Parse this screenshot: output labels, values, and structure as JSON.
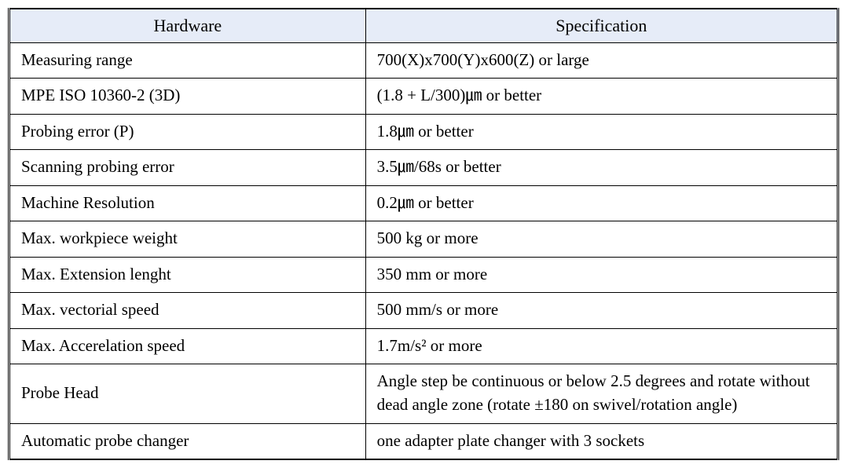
{
  "table": {
    "header_bg": "#e6ecf8",
    "border_color": "#000000",
    "font_family": "Times New Roman",
    "header_fontsize": 22,
    "cell_fontsize": 21,
    "columns": [
      {
        "label": "Hardware",
        "align": "center",
        "width_pct": 43
      },
      {
        "label": "Specification",
        "align": "center",
        "width_pct": 57
      }
    ],
    "rows": [
      {
        "hardware": "Measuring range",
        "spec": "700(X)x700(Y)x600(Z) or large"
      },
      {
        "hardware": "MPE ISO 10360-2 (3D)",
        "spec": "(1.8 + L/300)㎛ or better"
      },
      {
        "hardware": "Probing error (P)",
        "spec": "1.8㎛ or better"
      },
      {
        "hardware": "Scanning probing error",
        "spec": "3.5㎛/68s or better"
      },
      {
        "hardware": "Machine Resolution",
        "spec": "0.2㎛ or better"
      },
      {
        "hardware": "Max. workpiece weight",
        "spec": "500 kg or more"
      },
      {
        "hardware": "Max. Extension lenght",
        "spec": "350 mm or more"
      },
      {
        "hardware": "Max. vectorial speed",
        "spec": "500 mm/s or more"
      },
      {
        "hardware": "Max. Accerelation speed",
        "spec": "1.7m/s² or more"
      },
      {
        "hardware": "Probe Head",
        "spec": "Angle step be continuous or below 2.5 degrees and rotate without dead angle zone (rotate ±180 on swivel/rotation angle)"
      },
      {
        "hardware": "Automatic probe changer",
        "spec": "one adapter plate changer with 3 sockets"
      }
    ]
  }
}
